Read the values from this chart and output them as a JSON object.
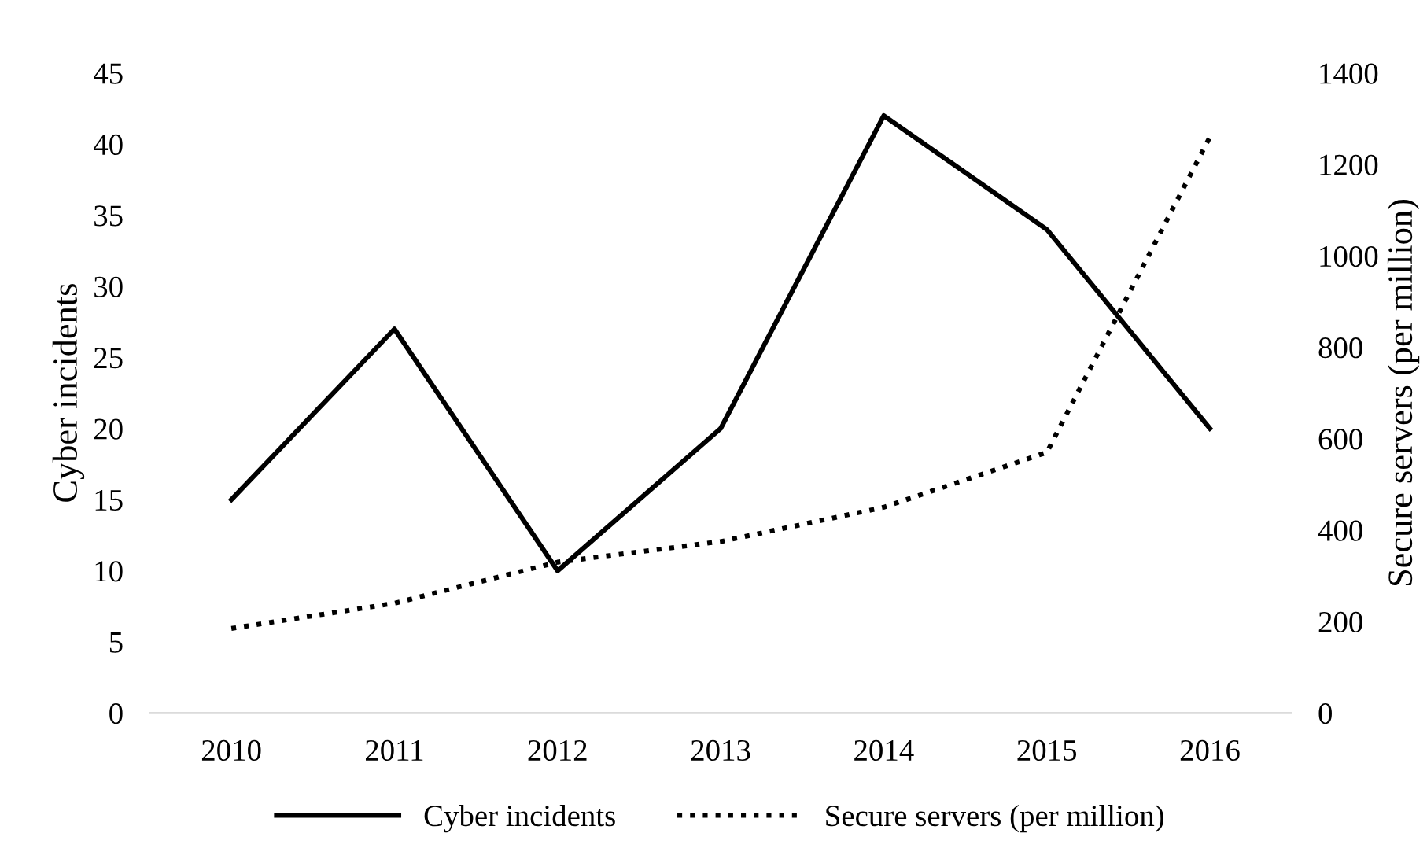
{
  "chart_data": {
    "type": "line",
    "categories": [
      "2010",
      "2011",
      "2012",
      "2013",
      "2014",
      "2015",
      "2016"
    ],
    "ylabel": "Cyber incidents",
    "y2label": "Secure servers (per million)",
    "ylim": [
      0,
      45
    ],
    "yticks": [
      0,
      5,
      10,
      15,
      20,
      25,
      30,
      35,
      40,
      45
    ],
    "y2lim": [
      0,
      1400
    ],
    "y2ticks": [
      0,
      200,
      400,
      600,
      800,
      1000,
      1200,
      1400
    ],
    "grid": false,
    "legend": "bottom",
    "series": [
      {
        "name": "Cyber incidents",
        "color": "#000000",
        "line_style": "solid",
        "values": [
          15,
          27,
          10,
          20,
          42,
          34,
          20
        ]
      },
      {
        "name": "Secure servers (per million)",
        "color": "#000000",
        "line_style": "dotted",
        "axis": "y2",
        "values": [
          185,
          240,
          330,
          375,
          450,
          570,
          1260
        ]
      }
    ]
  }
}
